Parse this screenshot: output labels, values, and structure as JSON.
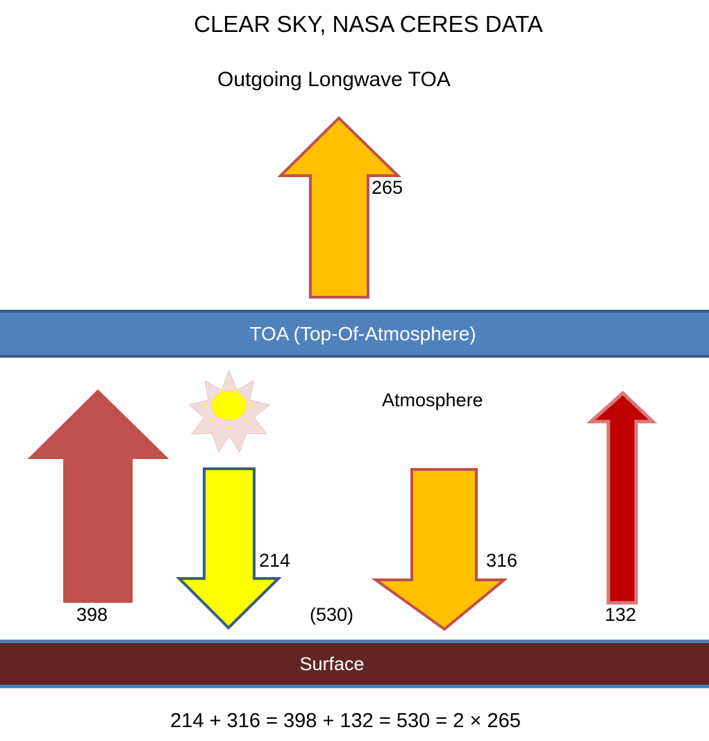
{
  "title": "CLEAR SKY, NASA CERES DATA",
  "outgoing_label": "Outgoing Longwave TOA",
  "toa_label": "TOA (Top-Of-Atmosphere)",
  "atmosphere_label": "Atmosphere",
  "surface_label": "Surface",
  "arrows": {
    "outgoing_toa": {
      "value": "265",
      "direction": "up",
      "fill": "#ffc000",
      "stroke": "#c0504d"
    },
    "surface_upward": {
      "value": "398",
      "direction": "up",
      "fill": "#c0504d",
      "stroke": "#c0504d"
    },
    "solar_down": {
      "value": "214",
      "direction": "down",
      "fill": "#ffff00",
      "stroke": "#385d8a"
    },
    "back_radiation": {
      "value": "316",
      "direction": "down",
      "fill": "#ffc000",
      "stroke": "#c0504d"
    },
    "upward_132": {
      "value": "132",
      "direction": "up",
      "fill": "#c00000",
      "stroke": "#d06060"
    }
  },
  "total_label": "(530)",
  "equation": "214 + 316 = 398 + 132 = 530 = 2 × 265",
  "icons": {
    "sun": "sun-icon"
  },
  "colors": {
    "toa_band": "#4f81bd",
    "toa_border": "#385d8a",
    "surface_band": "#632523",
    "surface_border": "#4f81bd"
  }
}
